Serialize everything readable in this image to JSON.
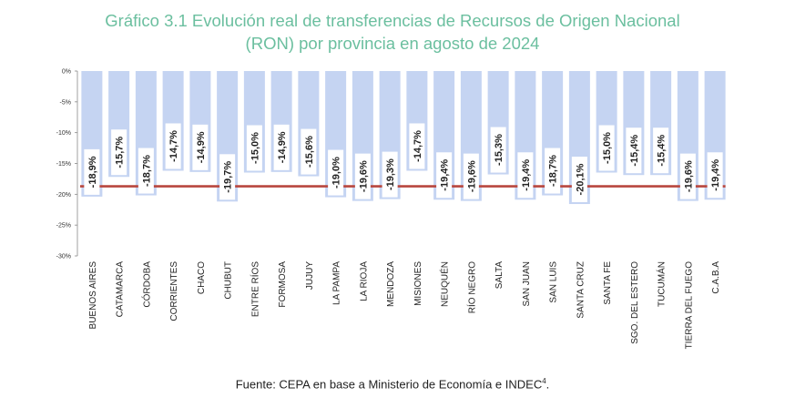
{
  "title_line1": "Gráfico 3.1 Evolución real de transferencias de Recursos de Origen Nacional",
  "title_line2": "(RON) por provincia en agosto de 2024",
  "source_text": "Fuente: CEPA en base a Ministerio de Economía e INDEC",
  "source_note": "4",
  "source_end": ".",
  "colors": {
    "bar": "#c5d4f2",
    "label_bg": "#ffffff",
    "label_text": "#222222",
    "ref_line": "#b8463e",
    "title": "#6bbf9f",
    "axis": "#888888"
  },
  "chart_data": {
    "type": "bar",
    "ylim": [
      -30,
      0
    ],
    "yticks": [
      "0%",
      "-5%",
      "-10%",
      "-15%",
      "-20%",
      "-25%",
      "-30%"
    ],
    "ytick_values": [
      0,
      -5,
      -10,
      -15,
      -20,
      -25,
      -30
    ],
    "reference_line_value": -18.7,
    "categories": [
      "BUENOS AIRES",
      "CATAMARCA",
      "CÓRDOBA",
      "CORRIENTES",
      "CHACO",
      "CHUBUT",
      "ENTRE RÍOS",
      "FORMOSA",
      "JUJUY",
      "LA PAMPA",
      "LA RIOJA",
      "MENDOZA",
      "MISIONES",
      "NEUQUÉN",
      "RÍO NEGRO",
      "SALTA",
      "SAN JUAN",
      "SAN LUIS",
      "SANTA CRUZ",
      "SANTA FE",
      "SGO. DEL ESTERO",
      "TUCUMÁN",
      "TIERRA DEL FUEGO",
      "C.A.B.A"
    ],
    "values": [
      -18.9,
      -15.7,
      -18.7,
      -14.7,
      -14.9,
      -19.7,
      -15.0,
      -14.9,
      -15.6,
      -19.0,
      -19.6,
      -19.3,
      -14.7,
      -19.4,
      -19.6,
      -15.3,
      -19.4,
      -18.7,
      -20.1,
      -15.0,
      -15.4,
      -15.4,
      -19.6,
      -19.4
    ],
    "labels": [
      "-18,9%",
      "-15,7%",
      "-18,7%",
      "-14,7%",
      "-14,9%",
      "-19,7%",
      "-15,0%",
      "-14,9%",
      "-15,6%",
      "-19,0%",
      "-19,6%",
      "-19,3%",
      "-14,7%",
      "-19,4%",
      "-19,6%",
      "-15,3%",
      "-19,4%",
      "-18,7%",
      "-20,1%",
      "-15,0%",
      "-15,4%",
      "-15,4%",
      "-19,6%",
      "-19,4%"
    ]
  }
}
